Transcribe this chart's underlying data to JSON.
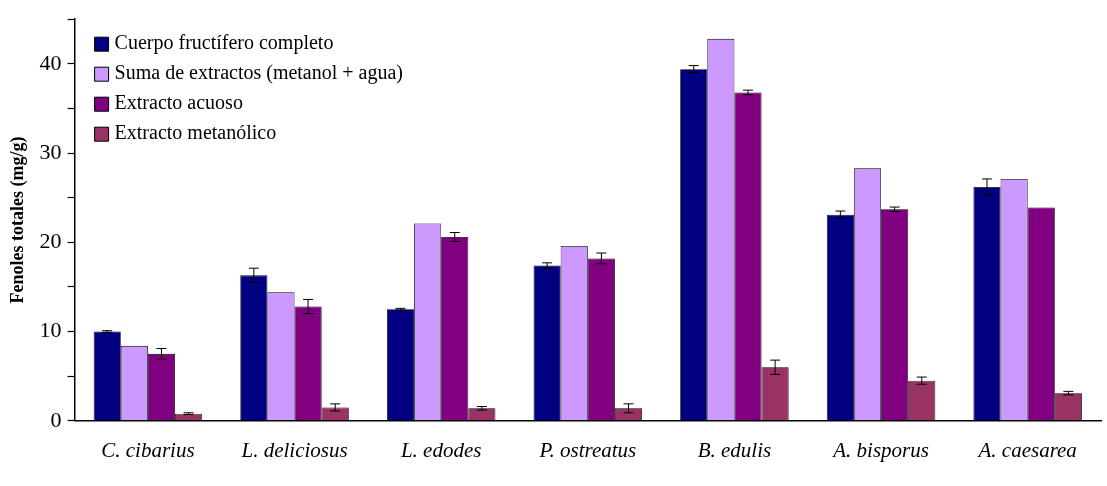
{
  "chart_data": {
    "type": "bar",
    "ylabel": "Fenoles totales (mg/g)",
    "categories": [
      "C. cibarius",
      "L. deliciosus",
      "L. edodes",
      "P. ostreatus",
      "B. edulis",
      "A. bisporus",
      "A. caesarea"
    ],
    "series": [
      {
        "name": "Cuerpo fructífero completo",
        "color": "#000080",
        "values": [
          10.0,
          16.3,
          12.5,
          17.4,
          39.4,
          23.1,
          26.2
        ],
        "errors": [
          0.1,
          0.8,
          0.1,
          0.3,
          0.4,
          0.4,
          0.9
        ]
      },
      {
        "name": "Suma de extractos (metanol + agua)",
        "color": "#cc99ff",
        "values": [
          8.4,
          14.4,
          22.1,
          19.6,
          42.8,
          28.3,
          27.1
        ]
      },
      {
        "name": "Extracto acuoso",
        "color": "#800080",
        "values": [
          7.5,
          12.8,
          20.6,
          18.2,
          36.8,
          23.7,
          23.9
        ],
        "errors": [
          0.6,
          0.8,
          0.5,
          0.6,
          0.25,
          0.25,
          null
        ]
      },
      {
        "name": "Extracto metanólico",
        "color": "#993366",
        "values": [
          0.8,
          1.5,
          1.4,
          1.4,
          6.0,
          4.5,
          3.1
        ],
        "errors": [
          0.1,
          0.4,
          0.2,
          0.5,
          0.8,
          0.4,
          0.2
        ]
      }
    ],
    "ylim": [
      0,
      45
    ],
    "yticks": [
      0,
      {
        "value": 5,
        "label": null
      },
      10,
      {
        "value": 15,
        "label": null
      },
      20,
      {
        "value": 25,
        "label": null
      },
      30,
      {
        "value": 35,
        "label": null
      },
      40,
      {
        "value": 45,
        "label": null
      }
    ],
    "grid": false,
    "legend": "top left"
  }
}
